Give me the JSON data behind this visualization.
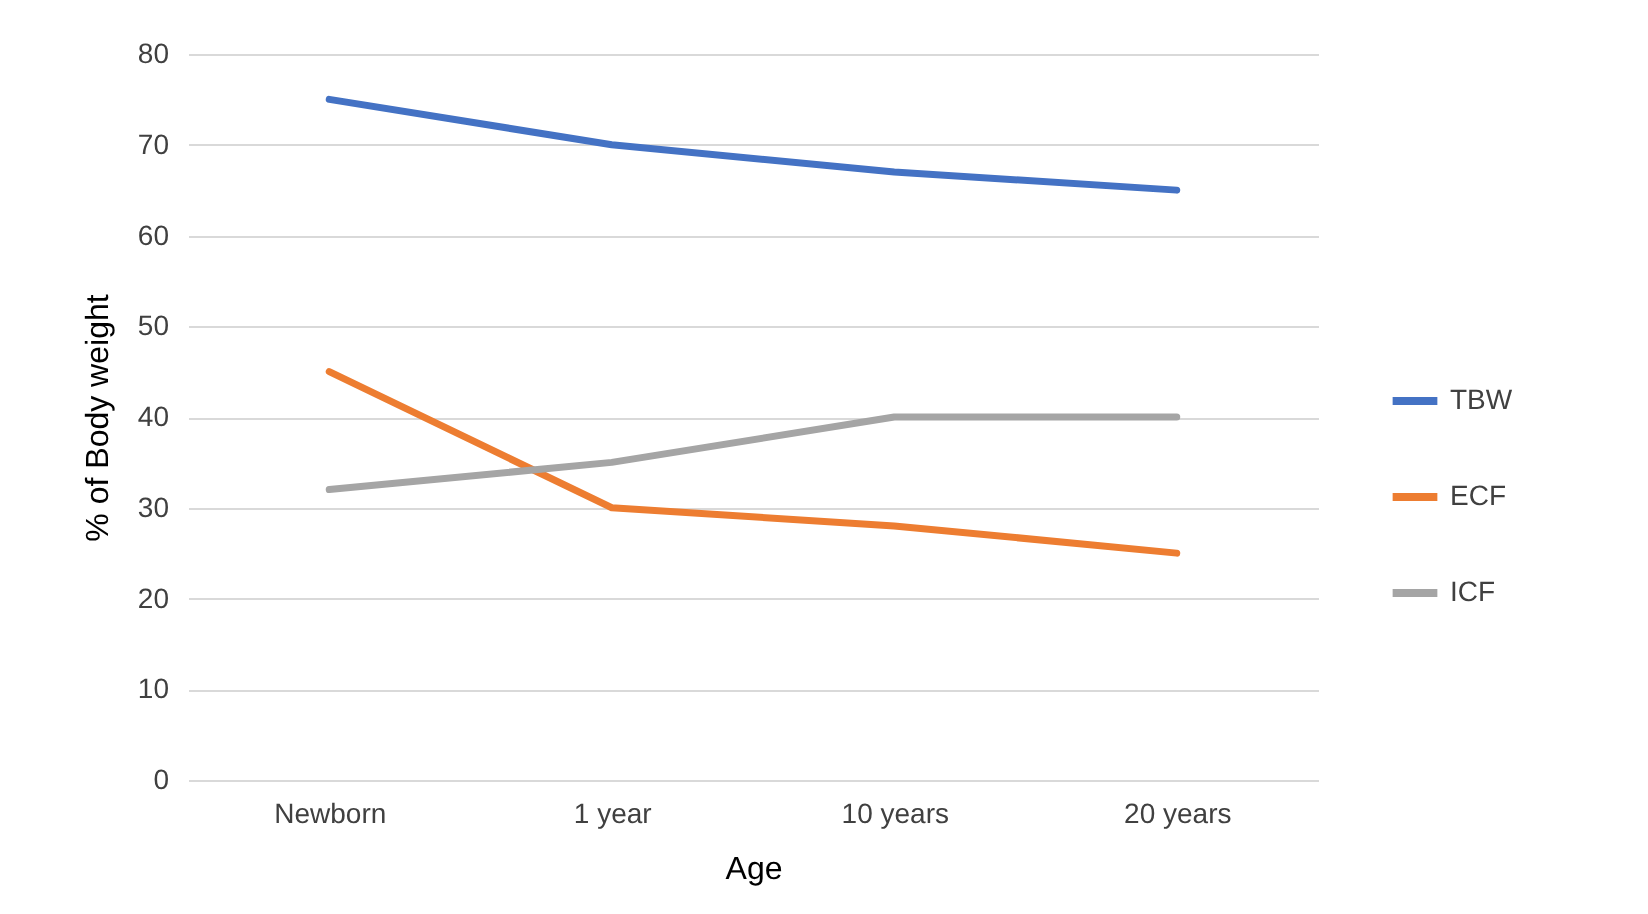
{
  "chart_data": {
    "type": "line",
    "xlabel": "Age",
    "ylabel": "% of Body weight",
    "categories": [
      "Newborn",
      "1 year",
      "10 years",
      "20 years"
    ],
    "series": [
      {
        "name": "TBW",
        "color": "#4472c4",
        "values": [
          75,
          70,
          67,
          65
        ]
      },
      {
        "name": "ECF",
        "color": "#ed7d31",
        "values": [
          45,
          30,
          28,
          25
        ]
      },
      {
        "name": "ICF",
        "color": "#a5a5a5",
        "values": [
          32,
          35,
          40,
          40
        ]
      }
    ],
    "ylim": [
      0,
      80
    ],
    "yticks": [
      0,
      10,
      20,
      30,
      40,
      50,
      60,
      70,
      80
    ],
    "grid": "y",
    "legend": "right",
    "marker": "none",
    "line_style": "solid"
  }
}
